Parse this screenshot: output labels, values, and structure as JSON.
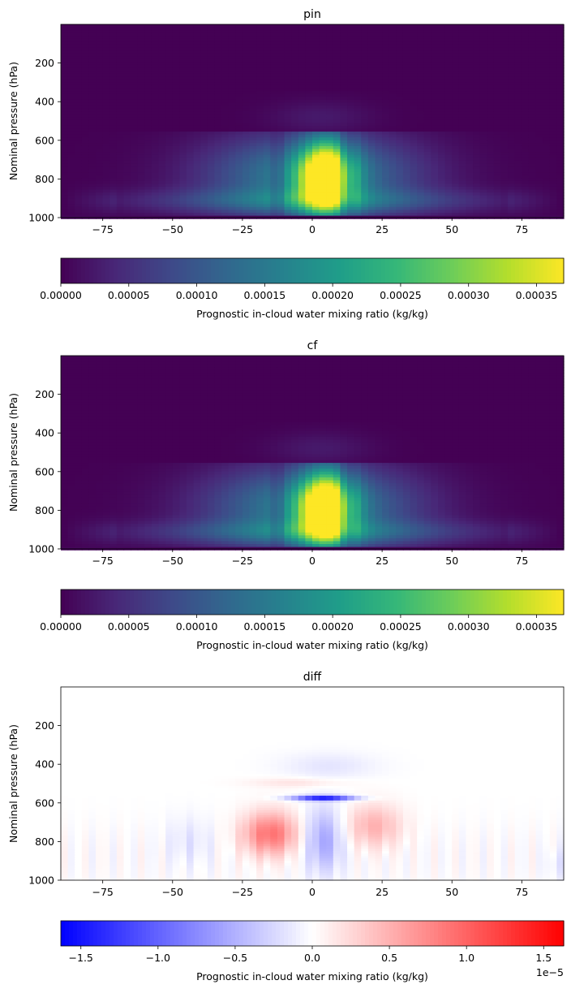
{
  "chart_data": [
    {
      "type": "heatmap",
      "title": "pin",
      "xlabel": "",
      "ylabel": "Nominal pressure (hPa)",
      "xlim": [
        -90,
        90
      ],
      "ylim": [
        1000,
        0
      ],
      "xticks": [
        -75,
        -50,
        -25,
        0,
        25,
        50,
        75
      ],
      "xtick_labels": [
        "−75",
        "−50",
        "−25",
        "0",
        "25",
        "50",
        "75"
      ],
      "yticks": [
        200,
        400,
        600,
        800,
        1000
      ],
      "ytick_labels": [
        "200",
        "400",
        "600",
        "800",
        "1000"
      ],
      "colormap": "viridis",
      "vmin": 0,
      "vmax": 0.00037,
      "cell_size_deg": 2.5,
      "peak": {
        "lat": 5,
        "pressure": 800,
        "value": 0.00037
      },
      "colorbar": {
        "label": "Prognostic in-cloud water mixing ratio (kg/kg)",
        "ticks": [
          0,
          5e-05,
          0.0001,
          0.00015,
          0.0002,
          0.00025,
          0.0003,
          0.00035
        ],
        "tick_labels": [
          "0.00000",
          "0.00005",
          "0.00010",
          "0.00015",
          "0.00020",
          "0.00025",
          "0.00030",
          "0.00035"
        ],
        "offset_label": ""
      }
    },
    {
      "type": "heatmap",
      "title": "cf",
      "xlabel": "",
      "ylabel": "Nominal pressure (hPa)",
      "xlim": [
        -90,
        90
      ],
      "ylim": [
        1000,
        0
      ],
      "xticks": [
        -75,
        -50,
        -25,
        0,
        25,
        50,
        75
      ],
      "xtick_labels": [
        "−75",
        "−50",
        "−25",
        "0",
        "25",
        "50",
        "75"
      ],
      "yticks": [
        200,
        400,
        600,
        800,
        1000
      ],
      "ytick_labels": [
        "200",
        "400",
        "600",
        "800",
        "1000"
      ],
      "colormap": "viridis",
      "vmin": 0,
      "vmax": 0.00037,
      "cell_size_deg": 2.5,
      "peak": {
        "lat": 5,
        "pressure": 800,
        "value": 0.00037
      },
      "colorbar": {
        "label": "Prognostic in-cloud water mixing ratio (kg/kg)",
        "ticks": [
          0,
          5e-05,
          0.0001,
          0.00015,
          0.0002,
          0.00025,
          0.0003,
          0.00035
        ],
        "tick_labels": [
          "0.00000",
          "0.00005",
          "0.00010",
          "0.00015",
          "0.00020",
          "0.00025",
          "0.00030",
          "0.00035"
        ],
        "offset_label": ""
      }
    },
    {
      "type": "heatmap",
      "title": "diff",
      "xlabel": "",
      "ylabel": "Nominal pressure (hPa)",
      "xlim": [
        -90,
        90
      ],
      "ylim": [
        1000,
        0
      ],
      "xticks": [
        -75,
        -50,
        -25,
        0,
        25,
        50,
        75
      ],
      "xtick_labels": [
        "−75",
        "−50",
        "−25",
        "0",
        "25",
        "50",
        "75"
      ],
      "yticks": [
        200,
        400,
        600,
        800,
        1000
      ],
      "ytick_labels": [
        "200",
        "400",
        "600",
        "800",
        "1000"
      ],
      "colormap": "bwr",
      "vmin": -1.63e-05,
      "vmax": 1.63e-05,
      "cell_size_deg": 2.5,
      "features": [
        {
          "lat": 4,
          "pressure": 575,
          "value": -1.6e-05
        },
        {
          "lat": -15,
          "pressure": 750,
          "value": 8e-06
        },
        {
          "lat": 22,
          "pressure": 720,
          "value": 5e-06
        },
        {
          "lat": 5,
          "pressure": 800,
          "value": -6e-06
        }
      ],
      "colorbar": {
        "label": "Prognostic in-cloud water mixing ratio (kg/kg)",
        "ticks": [
          -1.5e-05,
          -1e-05,
          -5e-06,
          0,
          5e-06,
          1e-05,
          1.5e-05
        ],
        "tick_labels": [
          "−1.5",
          "−1.0",
          "−0.5",
          "0.0",
          "0.5",
          "1.0",
          "1.5"
        ],
        "offset_label": "1e−5"
      }
    }
  ]
}
